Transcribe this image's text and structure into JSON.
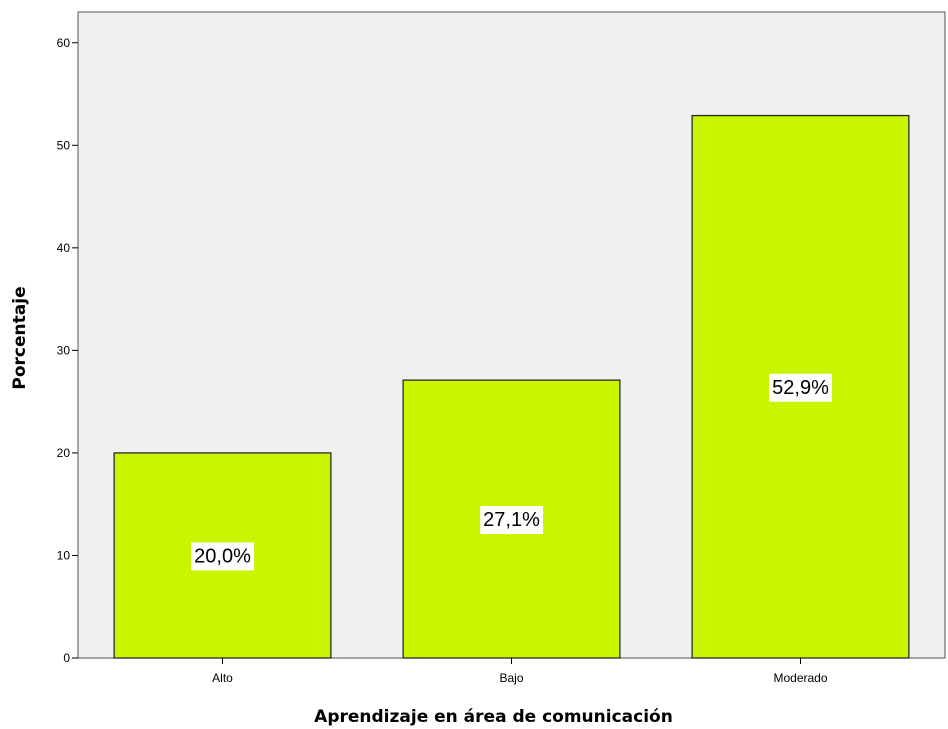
{
  "chart_data": {
    "type": "bar",
    "title": "",
    "categories": [
      "Alto",
      "Bajo",
      "Moderado"
    ],
    "values": [
      20.0,
      27.1,
      52.9
    ],
    "data_labels": [
      "20,0%",
      "27,1%",
      "52,9%"
    ],
    "xlabel": "Aprendizaje en área de comunicación",
    "ylabel": "Porcentaje",
    "ylim": [
      0,
      63
    ],
    "yticks": [
      0,
      10,
      20,
      30,
      40,
      50,
      60
    ],
    "grid": false,
    "legend": "none",
    "colors": {
      "plot_background": "#f0f0f0",
      "bar_fill": "#c8f500",
      "bar_stroke": "#2b2b2b",
      "label_background": "#ffffff"
    }
  }
}
